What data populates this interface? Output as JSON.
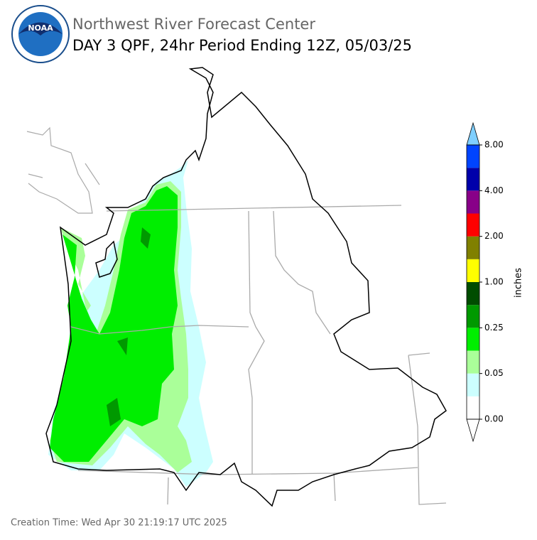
{
  "header": {
    "logo_text": "NOAA",
    "agency": "Northwest River Forecast Center",
    "title": "DAY 3 QPF, 24hr Period Ending 12Z, 05/03/25"
  },
  "colorbar": {
    "label": "inches",
    "ticks": [
      "0.00",
      "0.05",
      "0.25",
      "1.00",
      "2.00",
      "4.00",
      "8.00"
    ],
    "colors": [
      "#ffffff",
      "#ccffff",
      "#aaff99",
      "#00ee00",
      "#009900",
      "#004d00",
      "#ffff00",
      "#808000",
      "#ff0000",
      "#880088",
      "#0000aa",
      "#0044ff"
    ],
    "under_color": "#ffffff",
    "over_color": "#7fcfff"
  },
  "footer": "Creation Time: Wed Apr 30 21:19:17 UTC 2025"
}
